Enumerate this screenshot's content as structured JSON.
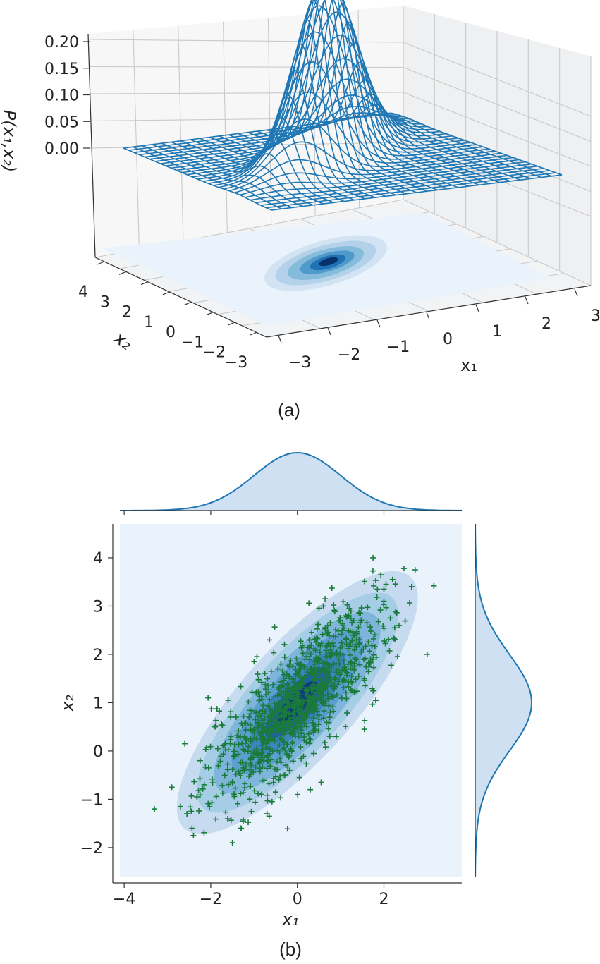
{
  "chart_data": [
    {
      "panel_label": "(a)",
      "type": "surface3d",
      "zlabel": "P(x₁,x₂)",
      "xlabel": "x₁",
      "ylabel": "x₂",
      "xticks": [
        "−3",
        "−2",
        "−1",
        "0",
        "1",
        "2",
        "3"
      ],
      "yticks": [
        "−3",
        "−2",
        "−1",
        "0",
        "1",
        "2",
        "3",
        "4"
      ],
      "zticks": [
        "0.00",
        "0.05",
        "0.10",
        "0.15",
        "0.20"
      ],
      "xlim": [
        -3,
        3
      ],
      "ylim": [
        -3,
        4
      ],
      "zlim": [
        0,
        0.2
      ],
      "distribution": {
        "mean": [
          0,
          1
        ],
        "std": [
          1,
          1
        ],
        "correlation": 0.8,
        "peak_density": 0.2
      },
      "series": [
        {
          "kind": "wireframe",
          "color": "#1f77b4"
        },
        {
          "kind": "filled_contour_projection",
          "colormap": "Blues"
        }
      ],
      "grid": true
    },
    {
      "panel_label": "(b)",
      "type": "scatter",
      "xlabel": "x₁",
      "ylabel": "x₂",
      "xticks": [
        "−4",
        "−2",
        "0",
        "2"
      ],
      "yticks": [
        "−2",
        "−1",
        "0",
        "1",
        "2",
        "3",
        "4"
      ],
      "xlim": [
        -4.1,
        3.8
      ],
      "ylim": [
        -2.6,
        4.7
      ],
      "marker": "+",
      "marker_color": "#1a7a3c",
      "kde_colormap": "Blues",
      "marginal_color": "#1f77b4",
      "sample": {
        "count": 1000,
        "mean": [
          0,
          1
        ],
        "std": [
          1,
          1
        ],
        "correlation": 0.8
      },
      "highlighted_points": [
        {
          "x": -3.3,
          "y": -1.2
        },
        {
          "x": 3.0,
          "y": 2.0
        },
        {
          "x": -2.9,
          "y": -0.75
        },
        {
          "x": -2.7,
          "y": -1.15
        },
        {
          "x": -2.6,
          "y": 0.15
        },
        {
          "x": -2.4,
          "y": -1.75
        },
        {
          "x": -2.55,
          "y": -1.3
        },
        {
          "x": -2.45,
          "y": -1.25
        },
        {
          "x": -1.9,
          "y": 0.5
        },
        {
          "x": -1.3,
          "y": -1.6
        },
        {
          "x": -1.5,
          "y": -1.9
        },
        {
          "x": -1.25,
          "y": -1.45
        },
        {
          "x": -1.6,
          "y": 1.05
        },
        {
          "x": -1.0,
          "y": 1.85
        },
        {
          "x": -0.7,
          "y": -1.3
        },
        {
          "x": -0.65,
          "y": -1.35
        },
        {
          "x": 0.55,
          "y": -0.65
        },
        {
          "x": 0.9,
          "y": 0.3
        },
        {
          "x": 0.6,
          "y": 3.0
        },
        {
          "x": 1.75,
          "y": 4.0
        },
        {
          "x": 2.05,
          "y": 3.45
        },
        {
          "x": 2.0,
          "y": 3.35
        },
        {
          "x": 2.2,
          "y": 3.55
        },
        {
          "x": 2.25,
          "y": 2.55
        },
        {
          "x": 2.35,
          "y": 2.6
        },
        {
          "x": 1.55,
          "y": 1.5
        },
        {
          "x": 1.55,
          "y": 0.45
        },
        {
          "x": 1.85,
          "y": 3.35
        },
        {
          "x": -0.5,
          "y": -0.85
        },
        {
          "x": -0.95,
          "y": 1.2
        },
        {
          "x": -2.15,
          "y": -0.7
        },
        {
          "x": -2.05,
          "y": -0.35
        },
        {
          "x": 0.05,
          "y": -0.55
        },
        {
          "x": 0.3,
          "y": -0.8
        },
        {
          "x": -0.3,
          "y": -0.5
        },
        {
          "x": 1.2,
          "y": 2.95
        },
        {
          "x": 0.7,
          "y": 2.6
        },
        {
          "x": 2.0,
          "y": 3.1
        }
      ],
      "marginal_top": {
        "type": "kde",
        "mean": 0,
        "std": 1
      },
      "marginal_right": {
        "type": "kde",
        "mean": 1,
        "std": 1
      }
    }
  ]
}
